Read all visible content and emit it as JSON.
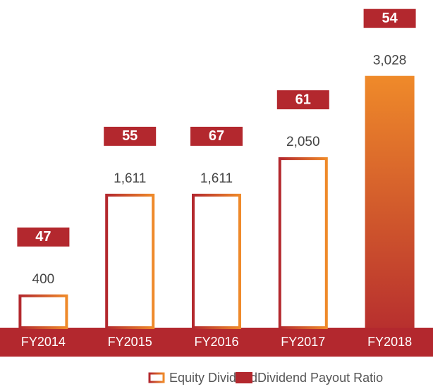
{
  "chart_data": {
    "type": "bar",
    "categories": [
      "FY2014",
      "FY2015",
      "FY2016",
      "FY2017",
      "FY2018"
    ],
    "series": [
      {
        "name": "Equity Dividend",
        "color": "#e8792a",
        "values": [
          400,
          1611,
          1611,
          2050,
          3028
        ],
        "value_labels": [
          "400",
          "1,611",
          "1,611",
          "2,050",
          "3,028"
        ]
      },
      {
        "name": "Dividend Payout Ratio",
        "color": "#b3282e",
        "values": [
          47,
          55,
          67,
          61,
          54
        ]
      }
    ]
  }
}
